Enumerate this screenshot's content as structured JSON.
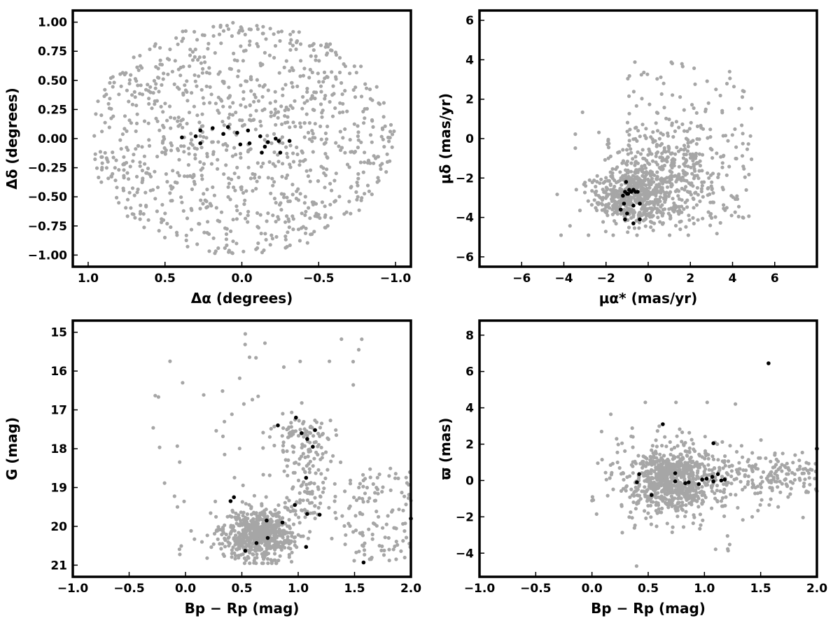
{
  "chart_data": [
    {
      "type": "scatter",
      "xlabel": "Δα (degrees)",
      "ylabel": "Δδ (degrees)",
      "xlim": [
        1.1,
        -1.1
      ],
      "ylim": [
        -1.1,
        1.1
      ],
      "x_inverted": true,
      "xticks": [
        "1.0",
        "0.5",
        "0.0",
        "−0.5",
        "−1.0"
      ],
      "xtick_values": [
        1.0,
        0.5,
        0.0,
        -0.5,
        -1.0
      ],
      "yticks": [
        "−1.00",
        "−0.75",
        "−0.50",
        "−0.25",
        "0.00",
        "0.25",
        "0.50",
        "0.75",
        "1.00"
      ],
      "ytick_values": [
        -1.0,
        -0.75,
        -0.5,
        -0.25,
        0.0,
        0.25,
        0.5,
        0.75,
        1.0
      ],
      "grid": false,
      "field_stars": {
        "color": "#a6a6a6",
        "distribution": "uniform disk of radius 1 degree",
        "count": 1000
      },
      "members": {
        "color": "#000000",
        "points": [
          [
            0.39,
            0.01
          ],
          [
            0.3,
            0.02
          ],
          [
            0.27,
            0.07
          ],
          [
            0.27,
            -0.04
          ],
          [
            0.19,
            0.09
          ],
          [
            0.12,
            0.04
          ],
          [
            0.09,
            0.1
          ],
          [
            0.03,
            0.05
          ],
          [
            0.01,
            -0.05
          ],
          [
            -0.04,
            0.07
          ],
          [
            -0.05,
            -0.04
          ],
          [
            -0.12,
            0.02
          ],
          [
            -0.13,
            -0.12
          ],
          [
            -0.15,
            -0.07
          ],
          [
            -0.17,
            -0.03
          ],
          [
            -0.22,
            0.0
          ],
          [
            -0.24,
            -0.02
          ],
          [
            -0.25,
            -0.12
          ],
          [
            -0.31,
            -0.02
          ]
        ]
      }
    },
    {
      "type": "scatter",
      "xlabel": "μα* (mas/yr)",
      "ylabel": "μδ (mas/yr)",
      "xlim": [
        -8,
        8
      ],
      "ylim": [
        -6.5,
        6.5
      ],
      "xticks": [
        "−6",
        "−4",
        "−2",
        "0",
        "2",
        "4",
        "6"
      ],
      "xtick_values": [
        -6,
        -4,
        -2,
        0,
        2,
        4,
        6
      ],
      "yticks": [
        "−6",
        "−4",
        "−2",
        "0",
        "2",
        "4",
        "6"
      ],
      "ytick_values": [
        -6,
        -4,
        -2,
        0,
        2,
        4,
        6
      ],
      "grid": false,
      "field_stars": {
        "color": "#a6a6a6",
        "distribution": "dense cloud centred near (0.5, -2.2), x spread -4.8..4.9, y spread -4.9..4.5",
        "count": 1000
      },
      "members": {
        "color": "#000000",
        "points": [
          [
            -1.2,
            -2.9
          ],
          [
            -1.1,
            -2.7
          ],
          [
            -1.0,
            -2.8
          ],
          [
            -0.9,
            -2.6
          ],
          [
            -0.8,
            -2.7
          ],
          [
            -0.7,
            -2.6
          ],
          [
            -0.6,
            -2.7
          ],
          [
            -0.5,
            -2.7
          ],
          [
            -1.3,
            -3.6
          ],
          [
            -1.1,
            -4.1
          ],
          [
            -1.0,
            -3.8
          ],
          [
            -1.05,
            -2.2
          ],
          [
            -0.7,
            -3.4
          ],
          [
            -0.4,
            -3.3
          ],
          [
            -0.7,
            -4.3
          ],
          [
            -0.4,
            -4.1
          ],
          [
            -0.95,
            -2.8
          ],
          [
            -1.15,
            -3.3
          ]
        ]
      }
    },
    {
      "type": "scatter",
      "xlabel": "Bp − Rp (mag)",
      "ylabel": "G (mag)",
      "xlim": [
        -1.0,
        2.0
      ],
      "ylim": [
        21.3,
        14.7
      ],
      "y_inverted": true,
      "xticks": [
        "−1.0",
        "−0.5",
        "0.0",
        "0.5",
        "1.0",
        "1.5",
        "2.0"
      ],
      "xtick_values": [
        -1.0,
        -0.5,
        0.0,
        0.5,
        1.0,
        1.5,
        2.0
      ],
      "yticks": [
        "15",
        "16",
        "17",
        "18",
        "19",
        "20",
        "21"
      ],
      "ytick_values": [
        15,
        16,
        17,
        18,
        19,
        20,
        21
      ],
      "grid": false,
      "field_stars": {
        "color": "#a6a6a6",
        "distribution": "main clump near (0.65, 20.2) plus a vertical branch near 1.05 down to G≈17",
        "count": 1000
      },
      "members": {
        "color": "#000000",
        "points": [
          [
            0.53,
            20.63
          ],
          [
            0.63,
            20.43
          ],
          [
            0.73,
            20.3
          ],
          [
            0.72,
            19.85
          ],
          [
            0.86,
            19.9
          ],
          [
            1.07,
            20.53
          ],
          [
            1.08,
            19.68
          ],
          [
            1.19,
            19.7
          ],
          [
            0.4,
            19.35
          ],
          [
            0.43,
            19.25
          ],
          [
            0.97,
            19.45
          ],
          [
            1.07,
            18.75
          ],
          [
            1.13,
            17.95
          ],
          [
            1.08,
            17.75
          ],
          [
            1.03,
            17.6
          ],
          [
            1.15,
            17.52
          ],
          [
            0.82,
            17.4
          ],
          [
            0.98,
            17.2
          ],
          [
            1.58,
            20.93
          ],
          [
            2.0,
            19.8
          ]
        ]
      }
    },
    {
      "type": "scatter",
      "xlabel": "Bp − Rp (mag)",
      "ylabel": "ϖ (mas)",
      "xlim": [
        -1.0,
        2.0
      ],
      "ylim": [
        -5.3,
        8.8
      ],
      "xticks": [
        "−1.0",
        "−0.5",
        "0.0",
        "0.5",
        "1.0",
        "1.5",
        "2.0"
      ],
      "xtick_values": [
        -1.0,
        -0.5,
        0.0,
        0.5,
        1.0,
        1.5,
        2.0
      ],
      "yticks": [
        "−4",
        "−2",
        "0",
        "2",
        "4",
        "6",
        "8"
      ],
      "ytick_values": [
        -4,
        -2,
        0,
        2,
        4,
        6,
        8
      ],
      "grid": false,
      "field_stars": {
        "color": "#a6a6a6",
        "distribution": "dense clump near (0.7, 0.0) with a tail to redder colours",
        "count": 1000
      },
      "members": {
        "color": "#000000",
        "points": [
          [
            0.42,
            0.35
          ],
          [
            0.4,
            -0.1
          ],
          [
            0.53,
            -0.8
          ],
          [
            0.63,
            3.1
          ],
          [
            0.74,
            0.4
          ],
          [
            0.74,
            -0.05
          ],
          [
            0.83,
            -0.15
          ],
          [
            0.86,
            -0.1
          ],
          [
            0.95,
            -0.2
          ],
          [
            0.98,
            0.05
          ],
          [
            1.02,
            0.1
          ],
          [
            1.07,
            0.2
          ],
          [
            1.08,
            -0.05
          ],
          [
            1.08,
            2.05
          ],
          [
            1.12,
            0.35
          ],
          [
            1.15,
            0.0
          ],
          [
            1.18,
            0.05
          ],
          [
            1.57,
            6.45
          ],
          [
            2.0,
            1.75
          ]
        ]
      }
    }
  ]
}
